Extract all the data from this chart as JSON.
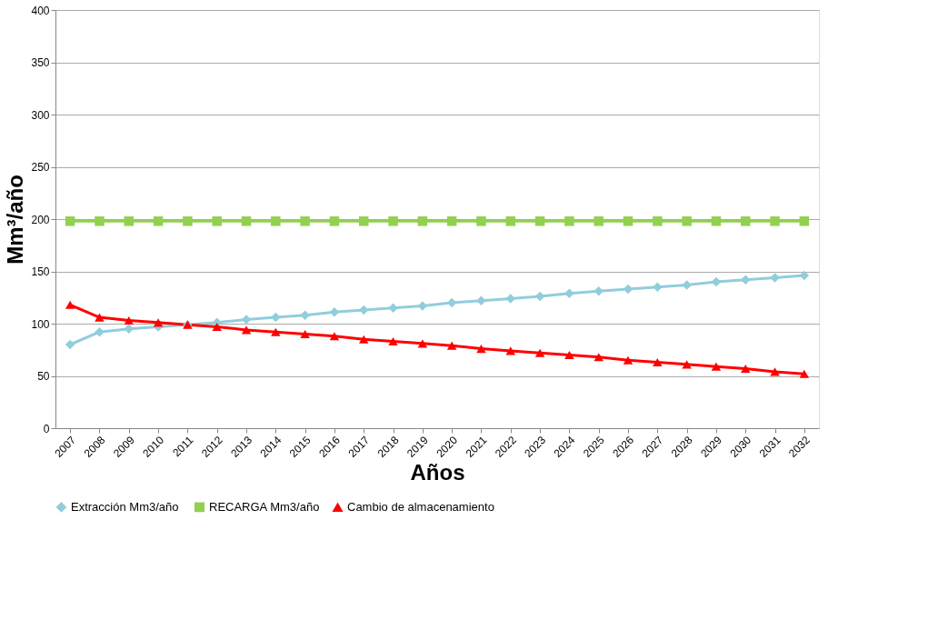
{
  "chart_data": {
    "type": "line",
    "xlabel": "Años",
    "ylabel": "Mm³/año",
    "categories": [
      "2007",
      "2008",
      "2009",
      "2010",
      "2011",
      "2012",
      "2013",
      "2014",
      "2015",
      "2016",
      "2017",
      "2018",
      "2019",
      "2020",
      "2021",
      "2022",
      "2023",
      "2024",
      "2025",
      "2026",
      "2027",
      "2028",
      "2029",
      "2030",
      "2031",
      "2032"
    ],
    "series": [
      {
        "name": "Extracción  Mm3/año",
        "color": "#92cddc",
        "marker": "diamond",
        "values": [
          80,
          92,
          95,
          97,
          99,
          101,
          104,
          106,
          108,
          111,
          113,
          115,
          117,
          120,
          122,
          124,
          126,
          129,
          131,
          133,
          135,
          137,
          140,
          142,
          144,
          146
        ]
      },
      {
        "name": "RECARGA Mm3/año",
        "color": "#92d050",
        "marker": "square",
        "values": [
          198,
          198,
          198,
          198,
          198,
          198,
          198,
          198,
          198,
          198,
          198,
          198,
          198,
          198,
          198,
          198,
          198,
          198,
          198,
          198,
          198,
          198,
          198,
          198,
          198,
          198
        ]
      },
      {
        "name": "Cambio de almacenamiento",
        "color": "#ff0000",
        "marker": "triangle",
        "values": [
          118,
          106,
          103,
          101,
          99,
          97,
          94,
          92,
          90,
          88,
          85,
          83,
          81,
          79,
          76,
          74,
          72,
          70,
          68,
          65,
          63,
          61,
          59,
          57,
          54,
          52
        ]
      }
    ],
    "ylim": [
      0,
      400
    ],
    "yticks": [
      0,
      50,
      100,
      150,
      200,
      250,
      300,
      350,
      400
    ],
    "grid": "y",
    "legend": "bottom",
    "line_style": "solid"
  }
}
